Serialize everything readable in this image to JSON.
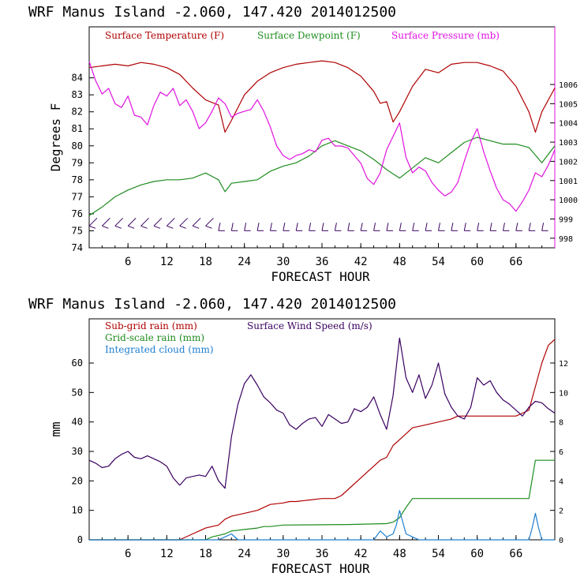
{
  "chart_data": [
    {
      "type": "line",
      "title": "WRF   Manus Island  -2.060, 147.420  2014012500",
      "xlabel": "FORECAST HOUR",
      "ylabel": "Degrees F",
      "xlim": [
        0,
        72
      ],
      "ylim": [
        74,
        87
      ],
      "y2lim": [
        997.5,
        1009
      ],
      "x_ticks": [
        "6",
        "12",
        "18",
        "24",
        "30",
        "36",
        "42",
        "48",
        "54",
        "60",
        "66"
      ],
      "y_ticks": [
        "74",
        "75",
        "76",
        "77",
        "78",
        "79",
        "80",
        "81",
        "82",
        "83",
        "84"
      ],
      "y2_ticks": [
        "998",
        "999",
        "1000",
        "1001",
        "1002",
        "1003",
        "1004",
        "1005",
        "1006"
      ],
      "legend": "top",
      "series": [
        {
          "name": "Surface Temperature (F)",
          "color": "#b00000",
          "axis": "left",
          "x": [
            0,
            2,
            4,
            6,
            8,
            10,
            12,
            14,
            16,
            18,
            20,
            21,
            22,
            24,
            26,
            28,
            30,
            32,
            34,
            36,
            38,
            40,
            42,
            44,
            45,
            46,
            47,
            48,
            50,
            52,
            54,
            56,
            58,
            60,
            62,
            64,
            66,
            68,
            69,
            70,
            72
          ],
          "y": [
            84.6,
            84.7,
            84.8,
            84.7,
            84.9,
            84.8,
            84.6,
            84.2,
            83.4,
            82.7,
            82.4,
            80.8,
            81.5,
            83.0,
            83.8,
            84.3,
            84.6,
            84.8,
            84.9,
            85.0,
            84.9,
            84.6,
            84.1,
            83.2,
            82.5,
            82.6,
            81.4,
            82.0,
            83.5,
            84.5,
            84.3,
            84.8,
            84.9,
            84.9,
            84.7,
            84.4,
            83.5,
            82.0,
            80.8,
            82.0,
            83.4
          ]
        },
        {
          "name": "Surface Dewpoint (F)",
          "color": "#1e8c1e",
          "axis": "left",
          "x": [
            0,
            2,
            4,
            6,
            8,
            10,
            12,
            14,
            16,
            18,
            19,
            20,
            21,
            22,
            24,
            26,
            28,
            30,
            32,
            34,
            36,
            38,
            40,
            42,
            44,
            46,
            48,
            50,
            52,
            54,
            56,
            58,
            60,
            62,
            64,
            66,
            68,
            70,
            72
          ],
          "y": [
            75.9,
            76.4,
            77.0,
            77.4,
            77.7,
            77.9,
            78.0,
            78.0,
            78.1,
            78.4,
            78.2,
            78.0,
            77.3,
            77.8,
            77.9,
            78.0,
            78.5,
            78.8,
            79.0,
            79.4,
            80.0,
            80.3,
            80.0,
            79.7,
            79.2,
            78.6,
            78.1,
            78.7,
            79.3,
            79.0,
            79.6,
            80.2,
            80.5,
            80.3,
            80.1,
            80.1,
            79.9,
            79.0,
            80.0
          ]
        },
        {
          "name": "Surface Pressure (mb)",
          "color": "#e012e0",
          "axis": "right",
          "x": [
            0,
            1,
            2,
            3,
            4,
            5,
            6,
            7,
            8,
            9,
            10,
            11,
            12,
            13,
            14,
            15,
            16,
            17,
            18,
            19,
            20,
            21,
            22,
            23,
            24,
            25,
            26,
            27,
            28,
            29,
            30,
            31,
            32,
            33,
            34,
            35,
            36,
            37,
            38,
            39,
            40,
            41,
            42,
            43,
            44,
            45,
            46,
            47,
            48,
            49,
            50,
            51,
            52,
            53,
            54,
            55,
            56,
            57,
            58,
            59,
            60,
            61,
            62,
            63,
            64,
            65,
            66,
            67,
            68,
            69,
            70,
            71,
            72
          ],
          "y": [
            1007.2,
            1006.2,
            1005.5,
            1005.8,
            1005.0,
            1004.8,
            1005.4,
            1004.4,
            1004.3,
            1003.9,
            1004.9,
            1005.6,
            1005.4,
            1005.8,
            1004.9,
            1005.2,
            1004.6,
            1003.7,
            1004.0,
            1004.6,
            1005.3,
            1005.0,
            1004.3,
            1004.5,
            1004.6,
            1004.7,
            1005.2,
            1004.6,
            1003.8,
            1002.8,
            1002.3,
            1002.1,
            1002.3,
            1002.4,
            1002.6,
            1002.5,
            1003.1,
            1003.2,
            1002.8,
            1002.8,
            1002.7,
            1002.3,
            1001.9,
            1001.1,
            1000.8,
            1001.4,
            1002.6,
            1003.3,
            1004.0,
            1002.2,
            1001.4,
            1001.7,
            1001.5,
            1000.9,
            1000.5,
            1000.2,
            1000.4,
            1000.9,
            1002.0,
            1003.0,
            1003.7,
            1002.5,
            1001.5,
            1000.6,
            1000.0,
            999.8,
            999.4,
            999.9,
            1000.5,
            1001.4,
            1001.2,
            1001.8,
            1002.6
          ]
        },
        {
          "name": "Wind barbs",
          "color": "#3a0060",
          "type": "barbs",
          "y_level": 75.1,
          "x": [
            0,
            2,
            4,
            6,
            8,
            10,
            12,
            14,
            16,
            18,
            20,
            22,
            24,
            26,
            28,
            30,
            32,
            34,
            36,
            38,
            40,
            42,
            44,
            46,
            48,
            50,
            52,
            54,
            56,
            58,
            60,
            62,
            64,
            66,
            68,
            70
          ]
        }
      ]
    },
    {
      "type": "line",
      "title": "WRF   Manus Island  -2.060, 147.420  2014012500",
      "xlabel": "FORECAST HOUR",
      "ylabel": "mm",
      "xlim": [
        0,
        72
      ],
      "ylim": [
        0,
        75
      ],
      "y2lim": [
        0,
        15
      ],
      "x_ticks": [
        "6",
        "12",
        "18",
        "24",
        "30",
        "36",
        "42",
        "48",
        "54",
        "60",
        "66"
      ],
      "y_ticks": [
        "0",
        "10",
        "20",
        "30",
        "40",
        "50",
        "60"
      ],
      "y2_ticks": [
        "0",
        "2",
        "4",
        "6",
        "8",
        "10",
        "12"
      ],
      "legend": "top-left",
      "series": [
        {
          "name": "Sub-grid rain (mm)",
          "color": "#b00000",
          "axis": "left",
          "x": [
            0,
            14,
            16,
            18,
            20,
            21,
            22,
            24,
            26,
            27,
            28,
            30,
            31,
            32,
            34,
            36,
            38,
            39,
            40,
            42,
            43,
            44,
            45,
            46,
            47,
            48,
            49,
            50,
            52,
            54,
            56,
            57,
            58,
            60,
            62,
            64,
            66,
            67,
            68,
            69,
            70,
            71,
            72
          ],
          "y": [
            0,
            0,
            2,
            4,
            5,
            7,
            8,
            9,
            10,
            11,
            12,
            12.5,
            13,
            13,
            13.5,
            14,
            14,
            15,
            17,
            21,
            23,
            25,
            27,
            28,
            32,
            34,
            36,
            38,
            39,
            40,
            41,
            42,
            42,
            42,
            42,
            42,
            42,
            43,
            44,
            52,
            60,
            66,
            68
          ]
        },
        {
          "name": "Grid-scale rain (mm)",
          "color": "#1e8c1e",
          "axis": "left",
          "x": [
            0,
            18,
            19,
            20,
            21,
            22,
            24,
            26,
            27,
            28,
            30,
            40,
            46,
            47,
            48,
            49,
            50,
            52,
            60,
            66,
            67,
            68,
            69,
            70,
            72
          ],
          "y": [
            0,
            0,
            1,
            1.5,
            2,
            3,
            3.5,
            4,
            4.5,
            4.5,
            5,
            5.2,
            5.5,
            6,
            7.5,
            11,
            14,
            14,
            14,
            14,
            14,
            14,
            27,
            27,
            27
          ]
        },
        {
          "name": "Integrated cloud (mm)",
          "color": "#1e7fd0",
          "axis": "left",
          "x": [
            0,
            20,
            21,
            22,
            23,
            44,
            45,
            46,
            47,
            47.5,
            48,
            48.5,
            49,
            50,
            51,
            52,
            67,
            68,
            68.5,
            69,
            69.5,
            70,
            72
          ],
          "y": [
            0,
            0,
            1,
            2,
            0,
            0,
            3,
            1,
            2,
            5,
            10,
            6,
            2,
            1,
            0,
            0,
            0,
            0,
            4,
            9,
            4,
            0,
            0
          ]
        },
        {
          "name": "Surface Wind Speed (m/s)",
          "color": "#3a0060",
          "axis": "right",
          "x": [
            0,
            1,
            2,
            3,
            4,
            5,
            6,
            7,
            8,
            9,
            10,
            11,
            12,
            13,
            14,
            15,
            16,
            17,
            18,
            19,
            20,
            21,
            22,
            23,
            24,
            25,
            26,
            27,
            28,
            29,
            30,
            31,
            32,
            33,
            34,
            35,
            36,
            37,
            38,
            39,
            40,
            41,
            42,
            43,
            44,
            45,
            46,
            47,
            48,
            49,
            50,
            51,
            52,
            53,
            54,
            55,
            56,
            57,
            58,
            59,
            60,
            61,
            62,
            63,
            64,
            65,
            66,
            67,
            68,
            69,
            70,
            71,
            72
          ],
          "y": [
            5.4,
            5.2,
            4.9,
            5.0,
            5.5,
            5.8,
            6.0,
            5.6,
            5.5,
            5.7,
            5.5,
            5.3,
            5.0,
            4.2,
            3.7,
            4.2,
            4.3,
            4.4,
            4.3,
            5.0,
            4.0,
            3.5,
            7.0,
            9.2,
            10.6,
            11.2,
            10.5,
            9.7,
            9.3,
            8.8,
            8.6,
            7.8,
            7.5,
            7.9,
            8.2,
            8.3,
            7.7,
            8.5,
            8.2,
            7.9,
            8.0,
            8.9,
            8.7,
            9.0,
            9.7,
            8.5,
            7.5,
            9.8,
            13.7,
            11.0,
            10.0,
            11.2,
            9.6,
            10.5,
            12.0,
            9.9,
            9.0,
            8.4,
            8.2,
            9.0,
            11.0,
            10.5,
            10.8,
            10.0,
            9.5,
            9.2,
            8.8,
            8.4,
            9.0,
            9.4,
            9.3,
            8.9,
            8.6
          ]
        }
      ]
    }
  ]
}
